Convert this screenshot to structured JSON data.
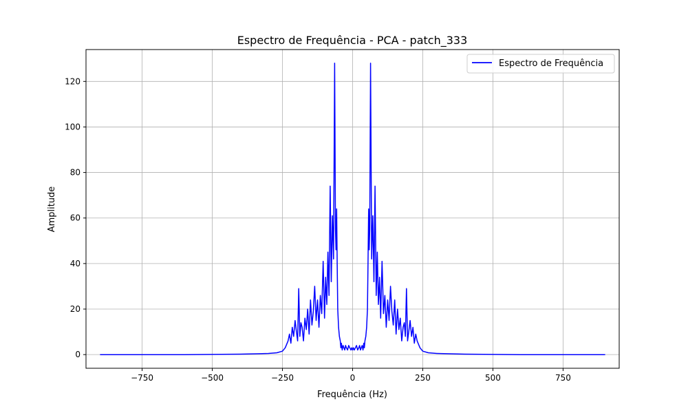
{
  "chart_data": {
    "type": "line",
    "title": "Espectro de Frequência - PCA - patch_333",
    "xlabel": "Frequência (Hz)",
    "ylabel": "Amplitude",
    "xlim": [
      -950,
      950
    ],
    "ylim": [
      -6,
      134
    ],
    "xticks": [
      -750,
      -500,
      -250,
      0,
      250,
      500,
      750
    ],
    "yticks": [
      0,
      20,
      40,
      60,
      80,
      100,
      120
    ],
    "xtick_labels": [
      "−750",
      "−500",
      "−250",
      "0",
      "250",
      "500",
      "750"
    ],
    "ytick_labels": [
      "0",
      "20",
      "40",
      "60",
      "80",
      "100",
      "120"
    ],
    "grid": true,
    "legend": "top-right",
    "series": [
      {
        "name": "Espectro de Frequência",
        "color": "#0000ff",
        "x": [
          -900,
          -600,
          -400,
          -300,
          -270,
          -250,
          -240,
          -230,
          -225,
          -220,
          -215,
          -210,
          -205,
          -200,
          -196,
          -192,
          -188,
          -184,
          -180,
          -175,
          -170,
          -165,
          -160,
          -155,
          -150,
          -145,
          -140,
          -135,
          -130,
          -125,
          -120,
          -115,
          -110,
          -105,
          -100,
          -96,
          -92,
          -88,
          -84,
          -80,
          -76,
          -72,
          -68,
          -64,
          -61,
          -59,
          -57,
          -55,
          -53,
          -50,
          -47,
          -44,
          -42,
          -40,
          -37,
          -34,
          -31,
          -28,
          -25,
          -22,
          -18,
          -14,
          -10,
          -6,
          -3,
          0,
          3,
          6,
          10,
          14,
          18,
          22,
          25,
          28,
          31,
          34,
          37,
          40,
          42,
          44,
          47,
          50,
          53,
          55,
          57,
          59,
          61,
          64,
          68,
          72,
          76,
          80,
          84,
          88,
          92,
          96,
          100,
          105,
          110,
          115,
          120,
          125,
          130,
          135,
          140,
          145,
          150,
          155,
          160,
          165,
          170,
          175,
          180,
          184,
          188,
          192,
          196,
          200,
          205,
          210,
          215,
          220,
          225,
          230,
          240,
          250,
          270,
          300,
          400,
          600,
          900
        ],
        "y": [
          0,
          0,
          0.2,
          0.5,
          0.8,
          1.5,
          3,
          6,
          9,
          5,
          12,
          8,
          15,
          10,
          6,
          29,
          8,
          14,
          12,
          6,
          16,
          11,
          20,
          9,
          24,
          13,
          19,
          30,
          15,
          24,
          12,
          26,
          18,
          41,
          16,
          34,
          22,
          45,
          26,
          74,
          32,
          61,
          42,
          128,
          55,
          46,
          64,
          40,
          20,
          12,
          8,
          6,
          3,
          5,
          2,
          4,
          3,
          2,
          4,
          3,
          2,
          4,
          3,
          2,
          3,
          2,
          3,
          2,
          3,
          4,
          2,
          3,
          4,
          2,
          3,
          4,
          2,
          5,
          3,
          6,
          8,
          12,
          20,
          40,
          64,
          46,
          55,
          128,
          42,
          61,
          32,
          74,
          26,
          45,
          22,
          34,
          16,
          41,
          18,
          26,
          12,
          24,
          15,
          30,
          19,
          13,
          24,
          9,
          20,
          11,
          16,
          6,
          12,
          14,
          8,
          29,
          6,
          10,
          15,
          8,
          12,
          5,
          9,
          6,
          3,
          1.5,
          0.8,
          0.5,
          0.2,
          0,
          0
        ]
      }
    ]
  }
}
